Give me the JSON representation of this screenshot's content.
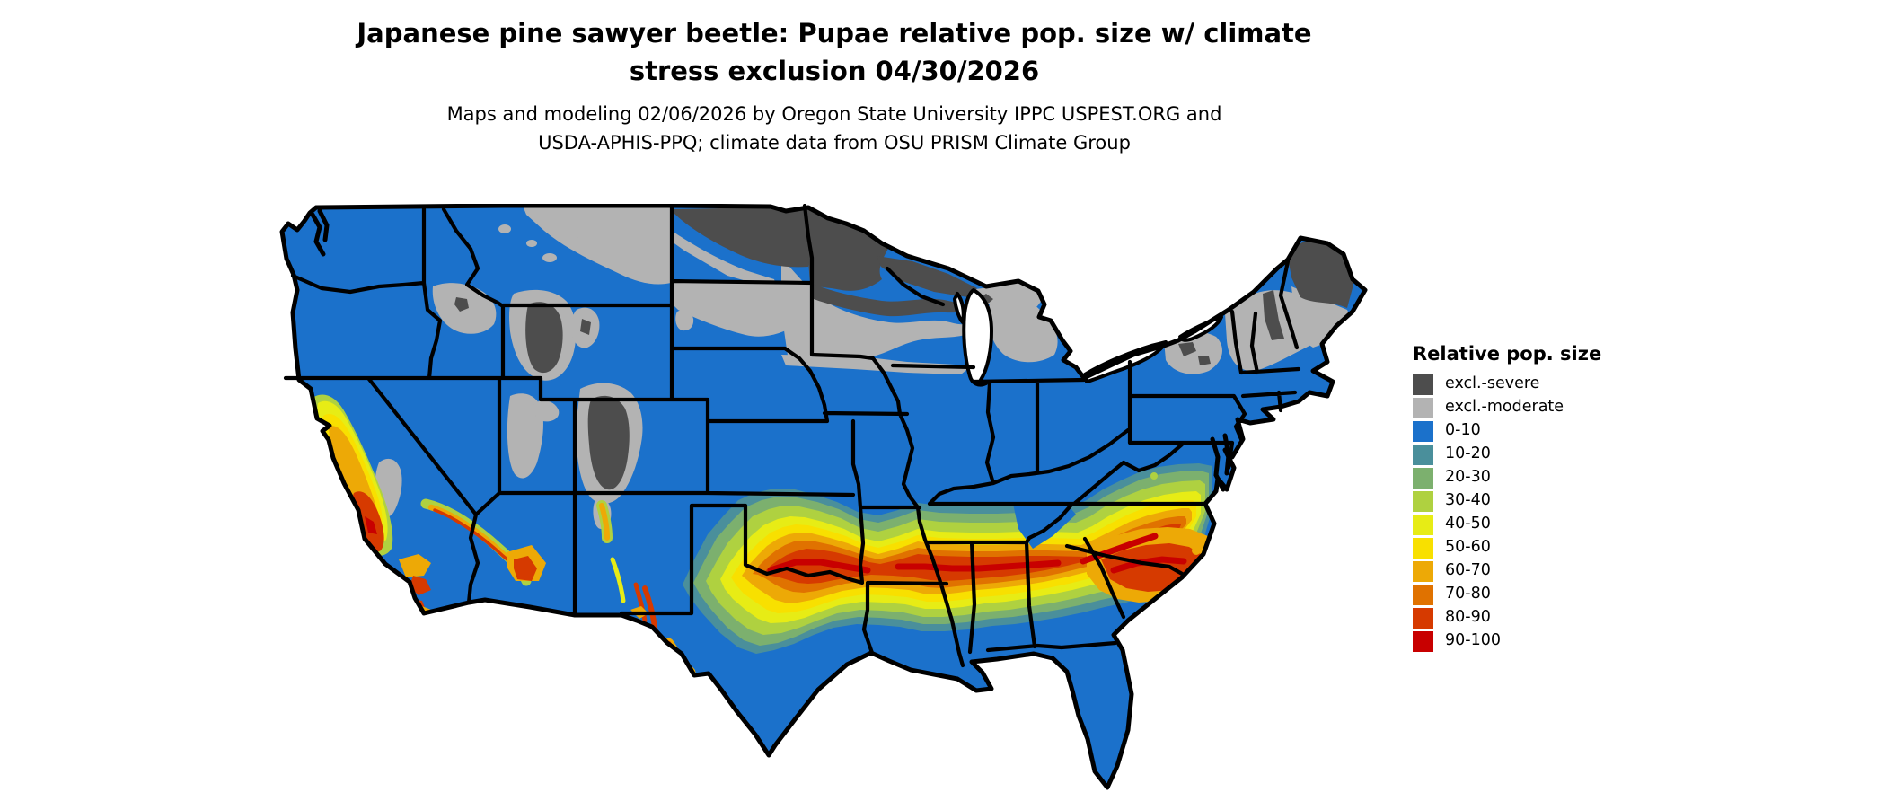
{
  "title": {
    "line1": "Japanese pine sawyer beetle: Pupae relative pop. size w/ climate",
    "line2": "stress exclusion 04/30/2026"
  },
  "subtitle": {
    "line1": "Maps and modeling 02/06/2026 by Oregon State University IPPC USPEST.ORG and",
    "line2": "USDA-APHIS-PPQ; climate data from OSU PRISM Climate Group"
  },
  "legend": {
    "title": "Relative pop. size",
    "items": [
      {
        "label": "excl.-severe",
        "color": "#4D4D4D"
      },
      {
        "label": "excl.-moderate",
        "color": "#B3B3B3"
      },
      {
        "label": "0-10",
        "color": "#1B71CB"
      },
      {
        "label": "10-20",
        "color": "#4A8F9B"
      },
      {
        "label": "20-30",
        "color": "#7CB06E"
      },
      {
        "label": "30-40",
        "color": "#AFD140"
      },
      {
        "label": "40-50",
        "color": "#E7EC15"
      },
      {
        "label": "50-60",
        "color": "#F8E000"
      },
      {
        "label": "60-70",
        "color": "#EDA906"
      },
      {
        "label": "70-80",
        "color": "#E07200"
      },
      {
        "label": "80-90",
        "color": "#D63A00"
      },
      {
        "label": "90-100",
        "color": "#C80000"
      }
    ]
  },
  "map": {
    "region": "Contiguous United States",
    "water_color": "#FFFFFF",
    "boundary_color": "#000000"
  }
}
